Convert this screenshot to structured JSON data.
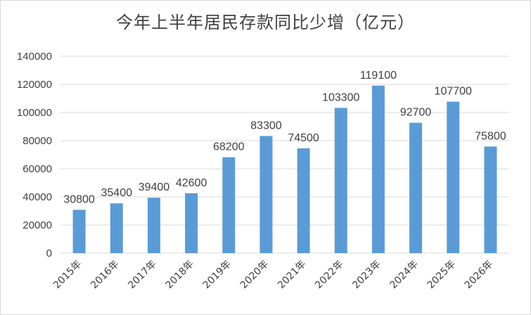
{
  "chart_data": {
    "type": "bar",
    "title": "今年上半年居民存款同比少增（亿元）",
    "categories": [
      "2015年",
      "2016年",
      "2017年",
      "2018年",
      "2019年",
      "2020年",
      "2021年",
      "2022年",
      "2023年",
      "2024年",
      "2025年",
      "2026年"
    ],
    "values": [
      30800,
      35400,
      39400,
      42600,
      68200,
      83300,
      74500,
      103300,
      119100,
      92700,
      107700,
      75800
    ],
    "ylim": [
      0,
      140000
    ],
    "yticks": [
      0,
      20000,
      40000,
      60000,
      80000,
      100000,
      120000,
      140000
    ],
    "xlabel": "",
    "ylabel": "",
    "grid": true,
    "legend": "none",
    "bar_color": "#5b9bd5",
    "grid_color": "#d9d9d9"
  }
}
